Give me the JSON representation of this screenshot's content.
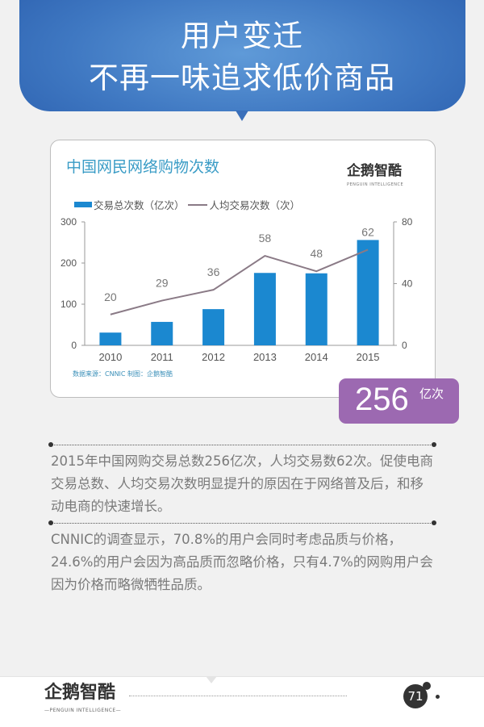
{
  "header": {
    "line1": "用户变迁",
    "line2": "不再一味追求低价商品"
  },
  "card": {
    "logo_text": "企鹅智酷",
    "logo_subtext": "PENGUIN INTELLIGENCE",
    "source": "数据来源：CNNIC 制图：企鹅智酷"
  },
  "badge": {
    "value": "256",
    "unit": "亿次"
  },
  "paragraphs": [
    "2015年中国网购交易总数256亿次，人均交易数62次。促使电商交易总数、人均交易次数明显提升的原因在于网络普及后，和移动电商的快速增长。",
    "CNNIC的调查显示，70.8%的用户会同时考虑品质与价格，24.6%的用户会因为高品质而忽略价格，只有4.7%的网购用户会因为价格而略微牺牲品质。"
  ],
  "footer": {
    "logo_text": "企鹅智酷",
    "logo_subtext": "—PENGUIN INTELLIGENCE—",
    "page_number": "71"
  },
  "chart_data": {
    "type": "bar+line",
    "title": "中国网民网络购物次数",
    "categories": [
      "2010",
      "2011",
      "2012",
      "2013",
      "2014",
      "2015"
    ],
    "series": [
      {
        "name": "交易总次数（亿次）",
        "type": "bar",
        "axis": "left",
        "color": "#1b88d0",
        "values": [
          31,
          57,
          88,
          176,
          175,
          256
        ]
      },
      {
        "name": "人均交易次数（次）",
        "type": "line",
        "axis": "right",
        "color": "#8a7a86",
        "values": [
          20,
          29,
          36,
          58,
          48,
          62
        ],
        "labels": [
          "20",
          "29",
          "36",
          "58",
          "48",
          "62"
        ]
      }
    ],
    "left_axis": {
      "ylim": [
        0,
        300
      ],
      "ticks": [
        "0",
        "100",
        "200",
        "300"
      ]
    },
    "right_axis": {
      "ylim": [
        0,
        80
      ],
      "ticks": [
        "0",
        "40",
        "80"
      ]
    },
    "grid": false,
    "legend": "top-left"
  }
}
